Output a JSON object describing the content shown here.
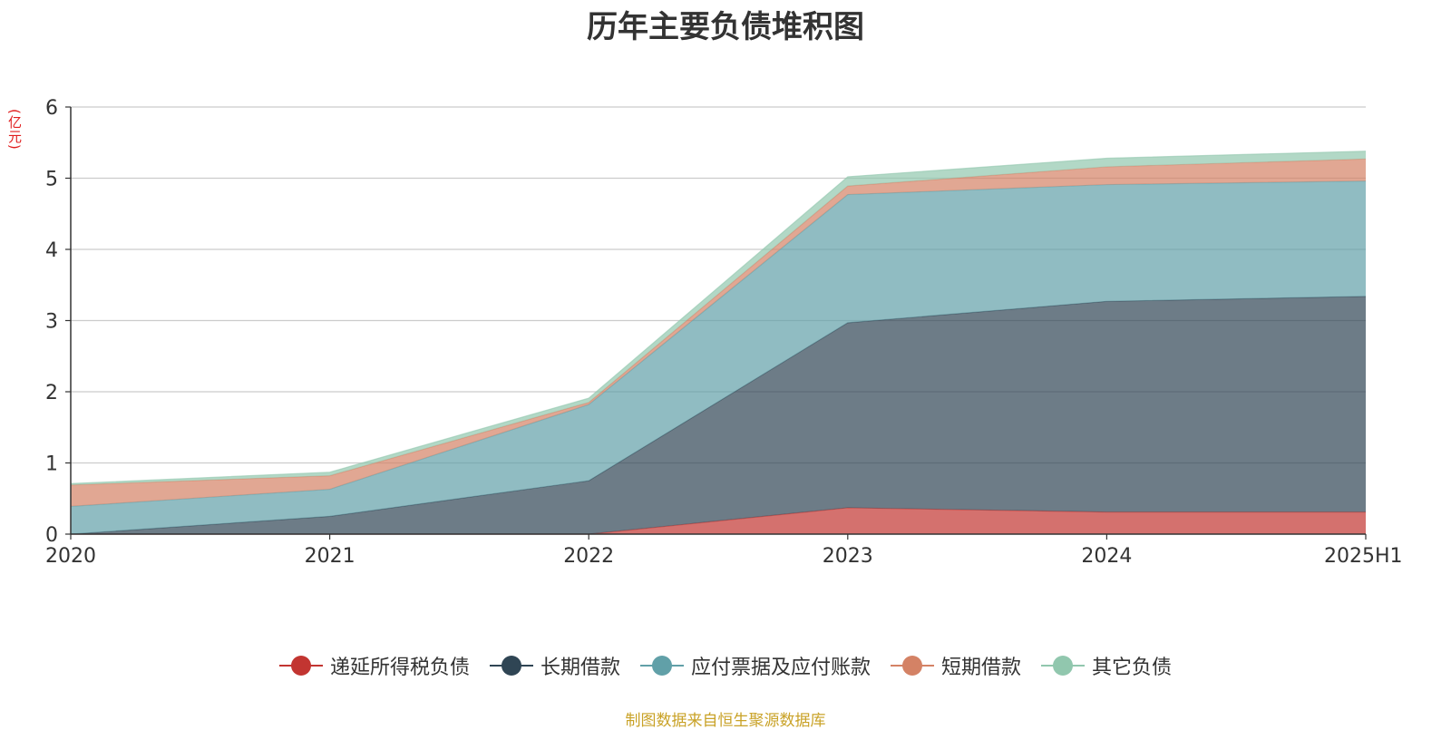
{
  "chart_data": {
    "type": "area",
    "stacked": true,
    "title": "历年主要负债堆积图",
    "unit_label": "(亿元)",
    "categories": [
      "2020",
      "2021",
      "2022",
      "2023",
      "2024",
      "2025H1"
    ],
    "ylim": [
      0,
      6
    ],
    "yticks": [
      "0",
      "1",
      "2",
      "3",
      "4",
      "5",
      "6"
    ],
    "grid": true,
    "legend_position": "bottom",
    "series": [
      {
        "name": "递延所得税负债",
        "color": "#c23531",
        "values": [
          0,
          0,
          0,
          0.37,
          0.31,
          0.31
        ]
      },
      {
        "name": "长期借款",
        "color": "#2f4554",
        "values": [
          0,
          0.25,
          0.75,
          2.6,
          2.96,
          3.03
        ]
      },
      {
        "name": "应付票据及应付账款",
        "color": "#61a0a8",
        "values": [
          0.39,
          0.38,
          1.07,
          1.8,
          1.64,
          1.62
        ]
      },
      {
        "name": "短期借款",
        "color": "#d48265",
        "values": [
          0.3,
          0.19,
          0.03,
          0.12,
          0.25,
          0.31
        ]
      },
      {
        "name": "其它负债",
        "color": "#91c7ae",
        "values": [
          0.02,
          0.05,
          0.06,
          0.13,
          0.12,
          0.11
        ]
      }
    ]
  },
  "source_note": "制图数据来自恒生聚源数据库",
  "colors": {
    "title": "#333333",
    "unit_label": "#e01f1f",
    "source_note": "#c9a227",
    "axis": "#333333",
    "grid": "#cccccc"
  }
}
